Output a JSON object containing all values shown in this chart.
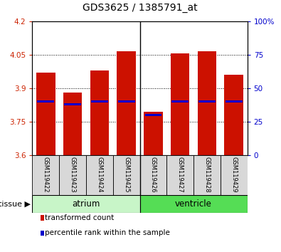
{
  "title": "GDS3625 / 1385791_at",
  "samples": [
    "GSM119422",
    "GSM119423",
    "GSM119424",
    "GSM119425",
    "GSM119426",
    "GSM119427",
    "GSM119428",
    "GSM119429"
  ],
  "transformed_counts": [
    3.97,
    3.88,
    3.98,
    4.065,
    3.795,
    4.055,
    4.065,
    3.96
  ],
  "percentile_ranks": [
    40,
    38,
    40,
    40,
    30,
    40,
    40,
    40
  ],
  "ylim_left": [
    3.6,
    4.2
  ],
  "ylim_right": [
    0,
    100
  ],
  "yticks_left": [
    3.6,
    3.75,
    3.9,
    4.05,
    4.2
  ],
  "yticks_right": [
    0,
    25,
    50,
    75,
    100
  ],
  "ytick_labels_left": [
    "3.6",
    "3.75",
    "3.9",
    "4.05",
    "4.2"
  ],
  "ytick_labels_right": [
    "0",
    "25",
    "50",
    "75",
    "100%"
  ],
  "groups": [
    {
      "label": "atrium",
      "indices": [
        0,
        1,
        2,
        3
      ],
      "color": "#c8f5c8"
    },
    {
      "label": "ventricle",
      "indices": [
        4,
        5,
        6,
        7
      ],
      "color": "#55dd55"
    }
  ],
  "bar_color": "#cc1100",
  "percentile_color": "#0000cc",
  "base_value": 3.6,
  "bar_width": 0.7,
  "left_tick_color": "#cc2200",
  "right_tick_color": "#0000cc",
  "tissue_label": "tissue",
  "legend_items": [
    {
      "label": "transformed count",
      "color": "#cc1100"
    },
    {
      "label": "percentile rank within the sample",
      "color": "#0000cc"
    }
  ]
}
